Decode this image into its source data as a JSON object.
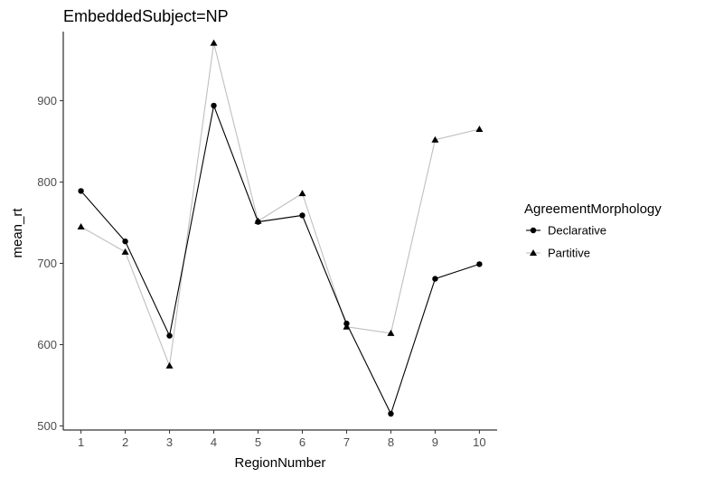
{
  "chart_data": {
    "type": "line",
    "title": "EmbeddedSubject=NP",
    "xlabel": "RegionNumber",
    "ylabel": "mean_rt",
    "x": [
      1,
      2,
      3,
      4,
      5,
      6,
      7,
      8,
      9,
      10
    ],
    "x_ticks": [
      "1",
      "2",
      "3",
      "4",
      "5",
      "6",
      "7",
      "8",
      "9",
      "10"
    ],
    "y_ticks": [
      "500",
      "600",
      "700",
      "800",
      "900"
    ],
    "xlim": [
      0.6,
      10.4
    ],
    "ylim": [
      495,
      985
    ],
    "grid": false,
    "legend_title": "AgreementMorphology",
    "legend_position": "right",
    "series": [
      {
        "name": "Declarative",
        "marker": "circle",
        "color": "#000000",
        "values": [
          789,
          727,
          611,
          894,
          751,
          759,
          626,
          515,
          681,
          699
        ]
      },
      {
        "name": "Partitive",
        "marker": "triangle",
        "color": "#bfbfbf",
        "marker_color": "#000000",
        "values": [
          745,
          714,
          574,
          971,
          752,
          786,
          622,
          614,
          852,
          865
        ]
      }
    ]
  }
}
